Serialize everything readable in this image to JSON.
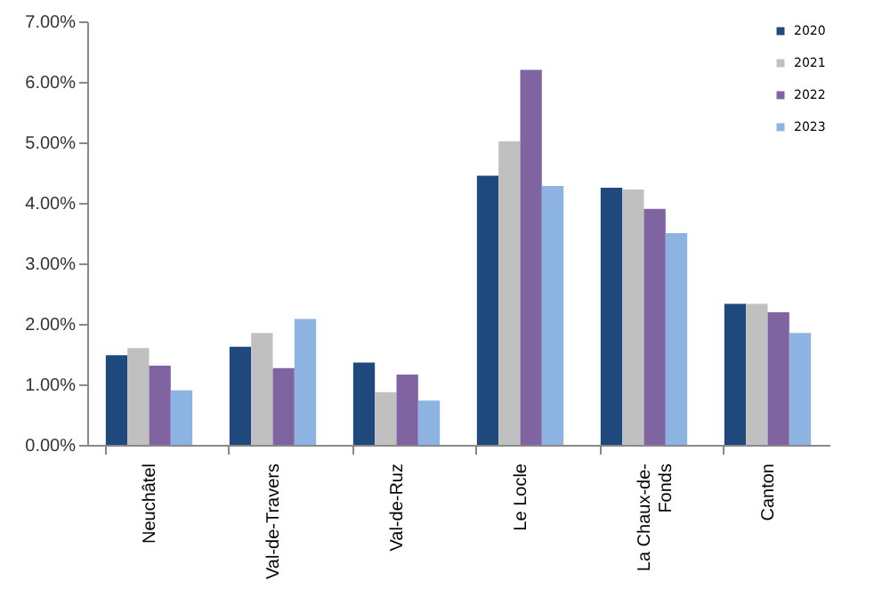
{
  "chart_data": {
    "type": "bar",
    "categories": [
      "Neuchâtel",
      "Val-de-Travers",
      "Val-de-Ruz",
      "Le Locle",
      "La Chaux-de-Fonds",
      "Canton"
    ],
    "series": [
      {
        "name": "2020",
        "color": "#1f497d",
        "values": [
          1.48,
          1.62,
          1.36,
          4.45,
          4.25,
          2.33
        ]
      },
      {
        "name": "2021",
        "color": "#c0c0c0",
        "values": [
          1.6,
          1.85,
          0.87,
          5.02,
          4.22,
          2.33
        ]
      },
      {
        "name": "2022",
        "color": "#8064a2",
        "values": [
          1.31,
          1.27,
          1.16,
          6.2,
          3.9,
          2.19
        ]
      },
      {
        "name": "2023",
        "color": "#8db3e2",
        "values": [
          0.9,
          2.08,
          0.73,
          4.28,
          3.5,
          1.85
        ]
      }
    ],
    "ylim": [
      0,
      7
    ],
    "yticks": [
      {
        "value": 0,
        "label": "0.00%"
      },
      {
        "value": 1,
        "label": "1.00%"
      },
      {
        "value": 2,
        "label": "2.00%"
      },
      {
        "value": 3,
        "label": "3.00%"
      },
      {
        "value": 4,
        "label": "4.00%"
      },
      {
        "value": 5,
        "label": "5.00%"
      },
      {
        "value": 6,
        "label": "6.00%"
      },
      {
        "value": 7,
        "label": "7.00%"
      }
    ],
    "grid": false,
    "legend": "top right"
  }
}
